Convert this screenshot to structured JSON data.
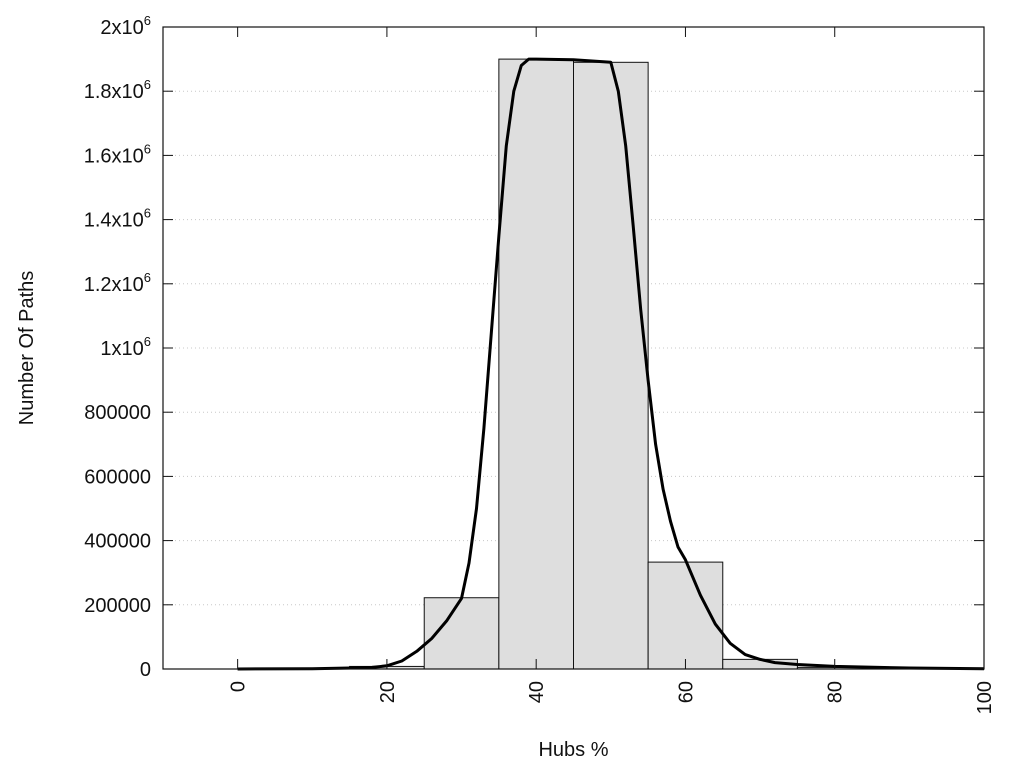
{
  "chart_data": {
    "type": "bar",
    "xlabel": "Hubs %",
    "ylabel": "Number Of Paths",
    "xlim": [
      -10,
      100
    ],
    "ylim": [
      0,
      2000000
    ],
    "grid": "horizontal-dotted",
    "x_ticks": [
      {
        "value": 0,
        "label": "0"
      },
      {
        "value": 20,
        "label": "20"
      },
      {
        "value": 40,
        "label": "40"
      },
      {
        "value": 60,
        "label": "60"
      },
      {
        "value": 80,
        "label": "80"
      },
      {
        "value": 100,
        "label": "100"
      }
    ],
    "y_ticks": [
      {
        "value": 0,
        "base": "0",
        "exp": ""
      },
      {
        "value": 200000,
        "base": "200000",
        "exp": ""
      },
      {
        "value": 400000,
        "base": "400000",
        "exp": ""
      },
      {
        "value": 600000,
        "base": "600000",
        "exp": ""
      },
      {
        "value": 800000,
        "base": "800000",
        "exp": ""
      },
      {
        "value": 1000000,
        "base": "1x10",
        "exp": "6"
      },
      {
        "value": 1200000,
        "base": "1.2x10",
        "exp": "6"
      },
      {
        "value": 1400000,
        "base": "1.4x10",
        "exp": "6"
      },
      {
        "value": 1600000,
        "base": "1.6x10",
        "exp": "6"
      },
      {
        "value": 1800000,
        "base": "1.8x10",
        "exp": "6"
      },
      {
        "value": 2000000,
        "base": "2x10",
        "exp": "6"
      }
    ],
    "bins": [
      {
        "from": 15,
        "to": 25,
        "value": 8000
      },
      {
        "from": 25,
        "to": 35,
        "value": 222000
      },
      {
        "from": 35,
        "to": 45,
        "value": 1900000
      },
      {
        "from": 45,
        "to": 55,
        "value": 1890000
      },
      {
        "from": 55,
        "to": 65,
        "value": 333000
      },
      {
        "from": 65,
        "to": 75,
        "value": 30000
      },
      {
        "from": 75,
        "to": 85,
        "value": 5000
      }
    ],
    "curve": {
      "x": [
        0,
        10,
        15,
        18,
        20,
        22,
        24,
        26,
        28,
        30,
        31,
        32,
        33,
        34,
        35,
        36,
        37,
        38,
        39,
        40,
        45,
        50,
        51,
        52,
        53,
        54,
        55,
        56,
        57,
        58,
        59,
        60,
        62,
        64,
        66,
        68,
        70,
        72,
        75,
        80,
        90,
        100
      ],
      "y": [
        0,
        1000,
        3000,
        5000,
        10000,
        25000,
        55000,
        95000,
        150000,
        220000,
        330000,
        500000,
        750000,
        1050000,
        1350000,
        1630000,
        1800000,
        1880000,
        1900000,
        1900000,
        1898000,
        1890000,
        1800000,
        1630000,
        1380000,
        1120000,
        900000,
        700000,
        560000,
        460000,
        380000,
        340000,
        230000,
        140000,
        80000,
        45000,
        30000,
        20000,
        14000,
        8000,
        3000,
        1000
      ]
    },
    "colors": {
      "bar_fill": "#dedede",
      "bar_stroke": "#111111",
      "curve": "#000000",
      "grid": "#c8c8c8"
    }
  }
}
